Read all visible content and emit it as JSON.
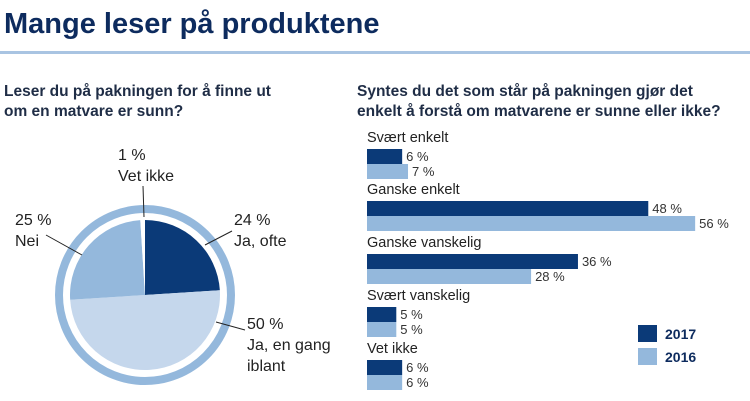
{
  "header": {
    "title": "Mange leser på produktene"
  },
  "colors": {
    "c2017": "#0b3a78",
    "c2016": "#94b8dc",
    "ring": "#94b8dc",
    "pie_often": "#0b3a78",
    "pie_sometimes": "#c5d7ec",
    "pie_no": "#94b8dc",
    "title": "#0d2b5e",
    "rule": "#a9c4e2"
  },
  "chart_data": [
    {
      "type": "pie",
      "title_lines": [
        "Leser du på pakningen for å finne ut",
        "om en matvare er sunn?"
      ],
      "slices": [
        {
          "label": "Ja, ofte",
          "value": 24,
          "value_label": "24 %"
        },
        {
          "label_lines": [
            "Ja, en gang",
            "iblant"
          ],
          "value": 50,
          "value_label": "50 %"
        },
        {
          "label": "Nei",
          "value": 25,
          "value_label": "25 %"
        },
        {
          "label": "Vet ikke",
          "value": 1,
          "value_label": "1 %"
        }
      ]
    },
    {
      "type": "bar",
      "orientation": "horizontal",
      "title_lines": [
        "Syntes du det som står på pakningen gjør det",
        "enkelt å forstå om matvarene er sunne eller ikke?"
      ],
      "categories": [
        "Svært enkelt",
        "Ganske enkelt",
        "Ganske vanskelig",
        "Svært vanskelig",
        "Vet ikke"
      ],
      "series": [
        {
          "name": "2017",
          "values": [
            6,
            48,
            36,
            5,
            6
          ],
          "labels": [
            "6 %",
            "48 %",
            "36 %",
            "5 %",
            "6 %"
          ]
        },
        {
          "name": "2016",
          "values": [
            7,
            56,
            28,
            5,
            6
          ],
          "labels": [
            "7 %",
            "56 %",
            "28 %",
            "5 %",
            "6 %"
          ]
        }
      ],
      "legend": "bottom-right"
    }
  ]
}
